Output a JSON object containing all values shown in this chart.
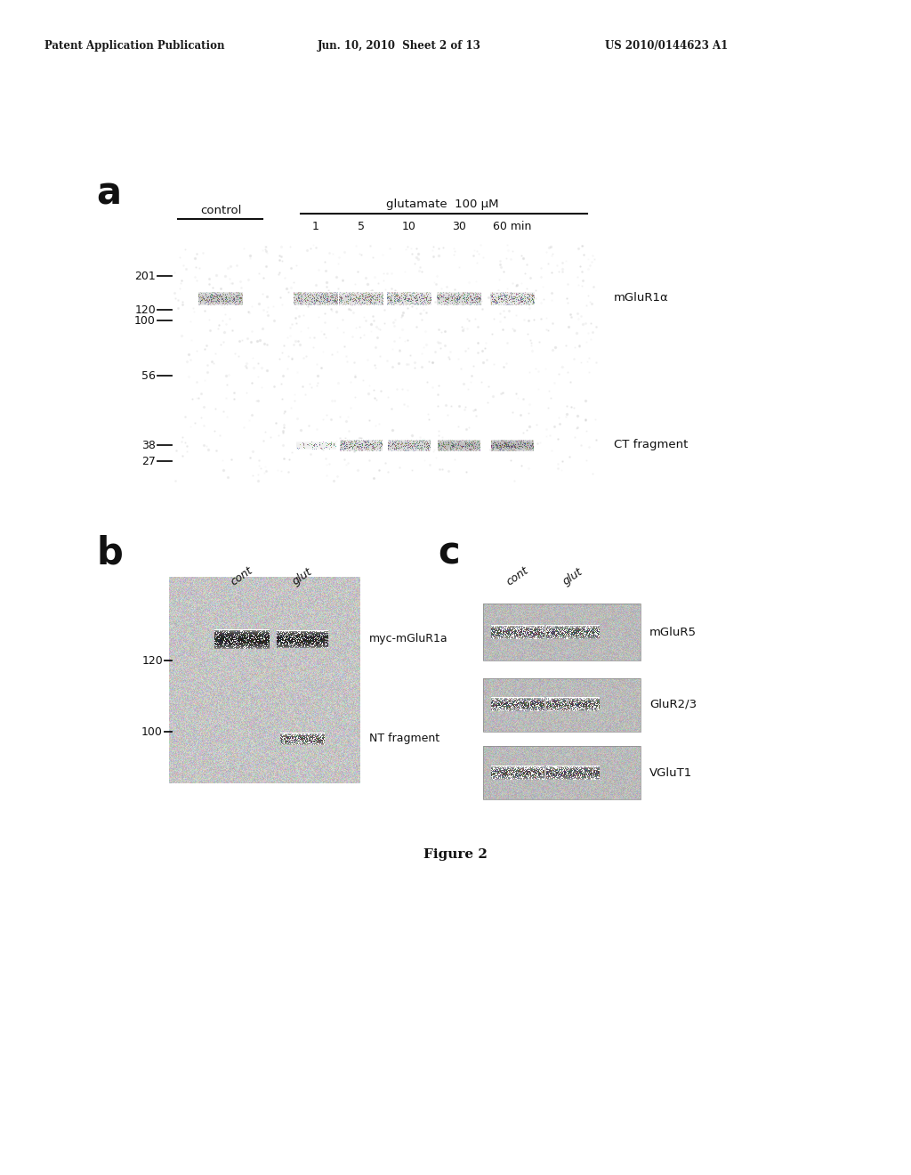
{
  "header_left": "Patent Application Publication",
  "header_mid": "Jun. 10, 2010  Sheet 2 of 13",
  "header_right": "US 2010/0144623 A1",
  "figure_label": "Figure 2",
  "panel_a_label": "a",
  "panel_b_label": "b",
  "panel_c_label": "c",
  "panel_a": {
    "control_label": "control",
    "glutamate_label": "glutamate  100 μM",
    "time_labels": [
      "1",
      "5",
      "10",
      "30",
      "60 min"
    ],
    "band1_label": "mGluR1α",
    "band2_label": "CT fragment"
  },
  "panel_b": {
    "col_labels": [
      "cont",
      "glut"
    ],
    "band1_label": "myc-mGluR1a",
    "band2_label": "NT fragment"
  },
  "panel_c": {
    "col_labels": [
      "cont",
      "glut"
    ],
    "band_labels": [
      "mGluR5",
      "GluR2/3",
      "VGluT1"
    ]
  },
  "bg_color": "#ffffff"
}
